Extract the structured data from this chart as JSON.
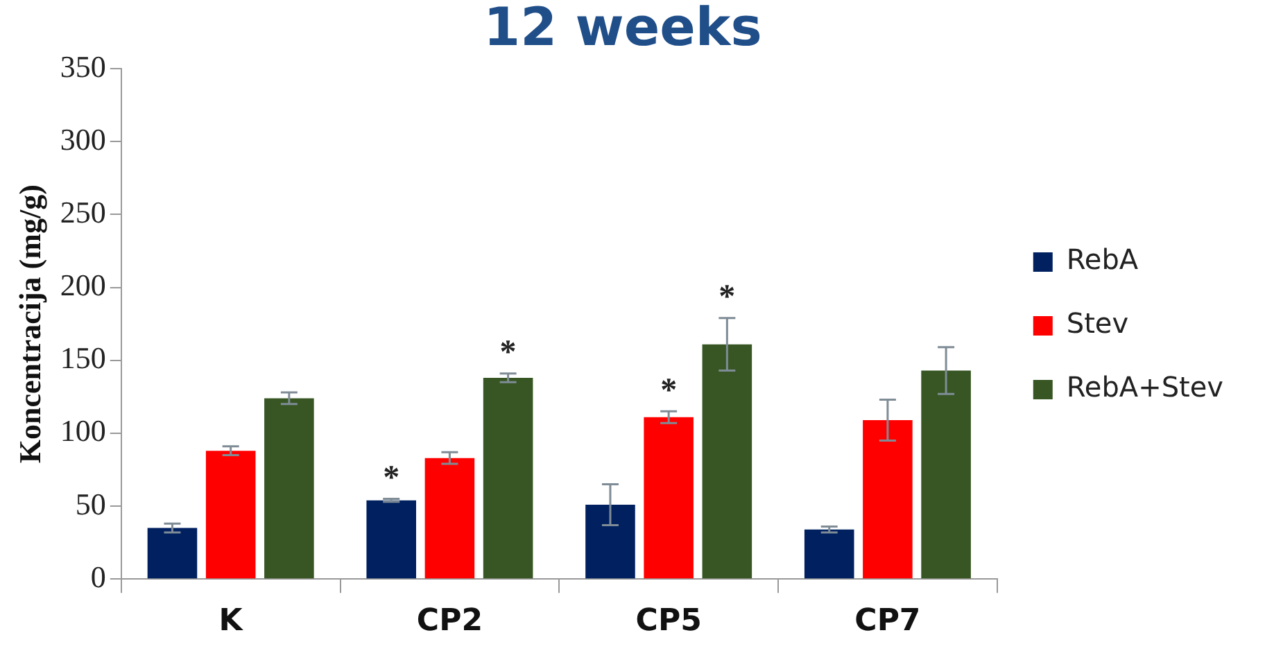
{
  "chart_data": {
    "type": "bar",
    "title": "12 weeks",
    "ylabel": "Koncentracija (mg/g)",
    "categories": [
      "K",
      "CP2",
      "CP5",
      "CP7"
    ],
    "series": [
      {
        "name": "RebA",
        "color": "#002060",
        "values": [
          35,
          54,
          51,
          34
        ],
        "errors": [
          3,
          1,
          14,
          2
        ],
        "value_labels": [
          null,
          "*",
          null,
          null
        ]
      },
      {
        "name": "Stev",
        "color": "#ff0000",
        "values": [
          88,
          83,
          111,
          109
        ],
        "errors": [
          3,
          4,
          4,
          14
        ],
        "value_labels": [
          null,
          null,
          "*",
          null
        ]
      },
      {
        "name": "RebA+Stev",
        "color": "#375623",
        "values": [
          124,
          138,
          161,
          143
        ],
        "errors": [
          4,
          3,
          18,
          16
        ],
        "value_labels": [
          null,
          "*",
          "*",
          null
        ]
      }
    ],
    "ylim": [
      0,
      350
    ],
    "yticks": [
      0,
      50,
      100,
      150,
      200,
      250,
      300,
      350
    ],
    "grid": false,
    "legend": "right"
  }
}
